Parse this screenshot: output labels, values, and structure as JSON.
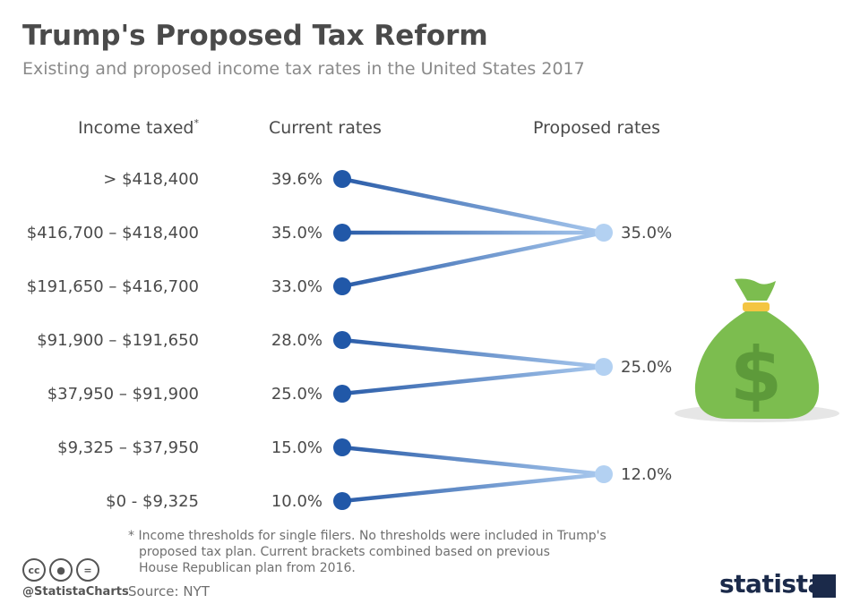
{
  "header": {
    "title": "Trump's Proposed Tax Reform",
    "subtitle": "Existing and proposed income tax rates in the United States 2017"
  },
  "columns": {
    "income": "Income taxed",
    "income_mark": "*",
    "current": "Current rates",
    "proposed": "Proposed rates"
  },
  "chart_data": {
    "type": "slope",
    "title": "Trump's Proposed Tax Reform",
    "subtitle": "Existing and proposed income tax rates in the United States 2017",
    "brackets": [
      {
        "income": "> $418,400",
        "current": 39.6,
        "current_label": "39.6%",
        "proposed_index": 0
      },
      {
        "income": "$416,700 – $418,400",
        "current": 35.0,
        "current_label": "35.0%",
        "proposed_index": 0
      },
      {
        "income": "$191,650 – $416,700",
        "current": 33.0,
        "current_label": "33.0%",
        "proposed_index": 0
      },
      {
        "income": "$91,900 – $191,650",
        "current": 28.0,
        "current_label": "28.0%",
        "proposed_index": 1
      },
      {
        "income": "$37,950 – $91,900",
        "current": 25.0,
        "current_label": "25.0%",
        "proposed_index": 1
      },
      {
        "income": "$9,325 – $37,950",
        "current": 15.0,
        "current_label": "15.0%",
        "proposed_index": 2
      },
      {
        "income": "$0 - $9,325",
        "current": 10.0,
        "current_label": "10.0%",
        "proposed_index": 2
      }
    ],
    "proposed": [
      {
        "value": 35.0,
        "label": "35.0%"
      },
      {
        "value": 25.0,
        "label": "25.0%"
      },
      {
        "value": 12.0,
        "label": "12.0%"
      }
    ]
  },
  "colors": {
    "current_dot": "#2158a8",
    "proposed_dot": "#b3d1f2",
    "line_start": "#2a5ca8",
    "line_end": "#a9c9ee",
    "bag": "#7cbd4f",
    "bag_dark": "#5d9a3a",
    "bag_tie": "#f4c542"
  },
  "illustration": {
    "icon": "money-bag-icon",
    "symbol": "$"
  },
  "footnote": {
    "line1": "* Income thresholds for single filers. No thresholds were included in Trump's",
    "line2": "proposed tax plan. Current brackets combined based on previous",
    "line3": "House Republican plan from 2016."
  },
  "footer": {
    "handle": "@StatistaCharts",
    "source": "Source: NYT",
    "brand": "statista",
    "cc_icons": [
      "cc",
      "by",
      "nd"
    ]
  }
}
